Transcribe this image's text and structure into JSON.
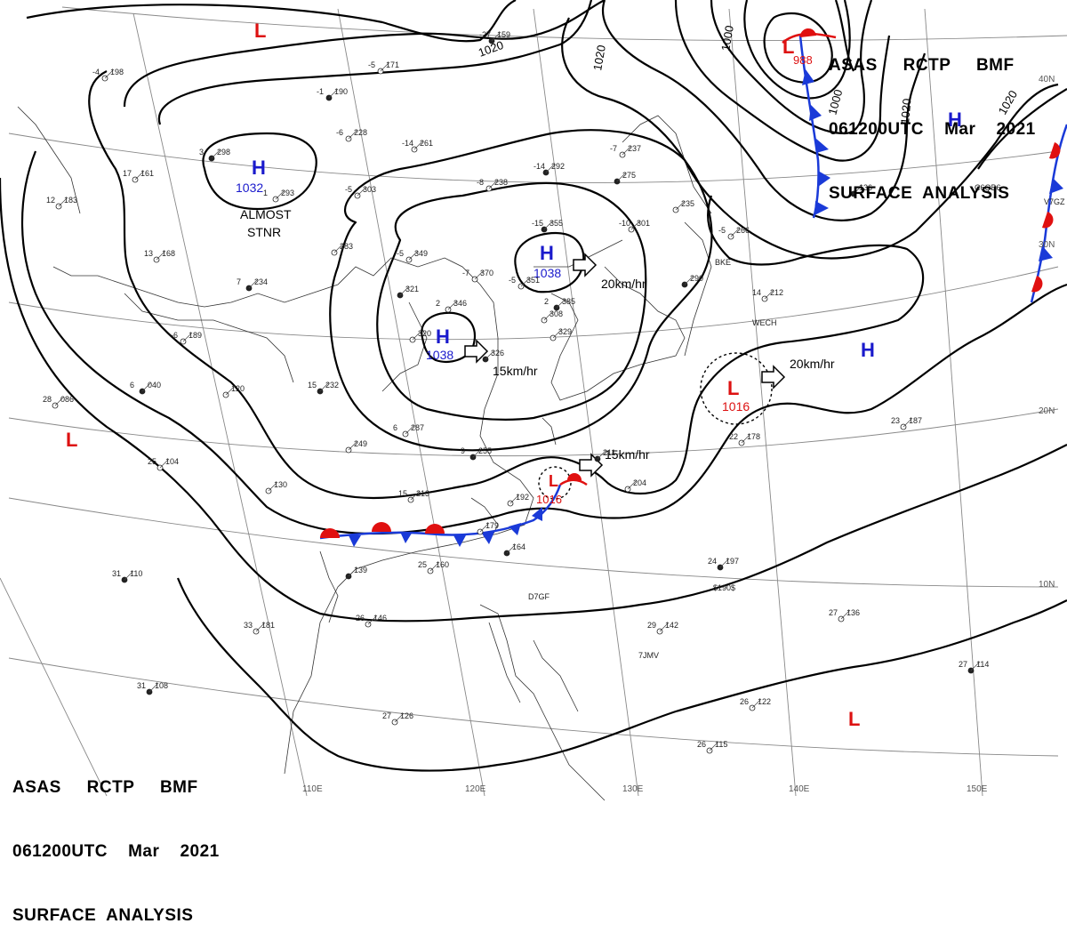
{
  "header": {
    "line1": "ASAS     RCTP     BMF",
    "line2": "061200UTC    Mar    2021",
    "line3": "SURFACE  ANALYSIS"
  },
  "lon_labels": [
    "110E",
    "120E",
    "130E",
    "140E",
    "150E"
  ],
  "lat_labels": [
    "10N",
    "20N",
    "30N",
    "40N"
  ],
  "isobar_labels": [
    "1020",
    "1020",
    "1000",
    "1000",
    "1020",
    "1020"
  ],
  "pressure_centers": {
    "h1": {
      "symbol": "H",
      "value": "1032"
    },
    "h2": {
      "symbol": "H",
      "value": "1038"
    },
    "h3": {
      "symbol": "H",
      "value": "1038"
    },
    "h4": {
      "symbol": "H",
      "value": ""
    },
    "h5": {
      "symbol": "H",
      "value": ""
    },
    "l1": {
      "symbol": "L",
      "value": "988"
    },
    "l2": {
      "symbol": "L",
      "value": "1016"
    },
    "l3": {
      "symbol": "L",
      "value": "1016"
    },
    "l4": {
      "symbol": "L",
      "value": ""
    },
    "l5": {
      "symbol": "L",
      "value": ""
    },
    "l6": {
      "symbol": "L",
      "value": ""
    }
  },
  "annotations": {
    "almost": "ALMOST",
    "stnr": "STNR",
    "motion1": "20km/hr",
    "motion2": "15km/hr",
    "motion3": "20km/hr",
    "motion4": "15km/hr"
  },
  "colors": {
    "high": "#1a1acc",
    "low": "#dd1111",
    "cold_front": "#1a3ad8",
    "warm_front": "#e01010",
    "isobar": "#000000",
    "grid": "#888888"
  },
  "stations": [
    {
      "t": "-27",
      "p": "159"
    },
    {
      "t": "-5",
      "p": "171"
    },
    {
      "t": "-4",
      "p": "198"
    },
    {
      "t": "-1",
      "p": "190"
    },
    {
      "t": "-6",
      "p": "228"
    },
    {
      "t": "-14",
      "p": "261"
    },
    {
      "t": "-14",
      "p": "292"
    },
    {
      "t": "-8",
      "p": "238"
    },
    {
      "t": "-7",
      "p": "237"
    },
    {
      "t": "",
      "p": "275"
    },
    {
      "t": "-10",
      "p": "301"
    },
    {
      "t": "-5",
      "p": "303"
    },
    {
      "t": "3",
      "p": "298"
    },
    {
      "t": "1",
      "p": "293"
    },
    {
      "t": "-5",
      "p": "349"
    },
    {
      "t": "",
      "p": "321"
    },
    {
      "t": "-7",
      "p": "370"
    },
    {
      "t": "-5",
      "p": "351"
    },
    {
      "t": "-15",
      "p": "355"
    },
    {
      "t": "2",
      "p": "346"
    },
    {
      "t": "",
      "p": "320"
    },
    {
      "t": "2",
      "p": "385"
    },
    {
      "t": "",
      "p": "308"
    },
    {
      "t": "",
      "p": "329"
    },
    {
      "t": "",
      "p": "326"
    },
    {
      "t": "",
      "p": "235"
    },
    {
      "t": "-5",
      "p": "266"
    },
    {
      "t": "",
      "p": "290"
    },
    {
      "t": "14",
      "p": "212"
    },
    {
      "t": "",
      "p": "283"
    },
    {
      "t": "7",
      "p": "234"
    },
    {
      "t": "13",
      "p": "168"
    },
    {
      "t": "-6",
      "p": "189"
    },
    {
      "t": "6",
      "p": "040"
    },
    {
      "t": "28",
      "p": "086"
    },
    {
      "t": "",
      "p": "120"
    },
    {
      "t": "15",
      "p": "232"
    },
    {
      "t": "",
      "p": "249"
    },
    {
      "t": "6",
      "p": "287"
    },
    {
      "t": "9",
      "p": "255"
    },
    {
      "t": "15",
      "p": "213"
    },
    {
      "t": "",
      "p": "192"
    },
    {
      "t": "",
      "p": "164"
    },
    {
      "t": "",
      "p": "179"
    },
    {
      "t": "25",
      "p": "160"
    },
    {
      "t": "",
      "p": "139"
    },
    {
      "t": "25",
      "p": "104"
    },
    {
      "t": "",
      "p": "130"
    },
    {
      "t": "31",
      "p": "110"
    },
    {
      "t": "33",
      "p": "181"
    },
    {
      "t": "26",
      "p": "146"
    },
    {
      "t": "31",
      "p": "108"
    },
    {
      "t": "27",
      "p": "126"
    },
    {
      "t": "",
      "p": "204"
    },
    {
      "t": "",
      "p": "211"
    },
    {
      "t": "22",
      "p": "178"
    },
    {
      "t": "23",
      "p": "187"
    },
    {
      "t": "24",
      "p": "197"
    },
    {
      "t": "29",
      "p": "142"
    },
    {
      "t": "27",
      "p": "136"
    },
    {
      "t": "27",
      "p": "114"
    },
    {
      "t": "26",
      "p": "122"
    },
    {
      "t": "26",
      "p": "115"
    },
    {
      "t": "",
      "p": "136"
    },
    {
      "t": "17",
      "p": "161"
    },
    {
      "t": "12",
      "p": "183"
    }
  ],
  "ship_ids": [
    "BKE",
    "WECH",
    "C6QB6",
    "D7GF",
    "7JMV",
    "$190$",
    "V7GZ"
  ]
}
